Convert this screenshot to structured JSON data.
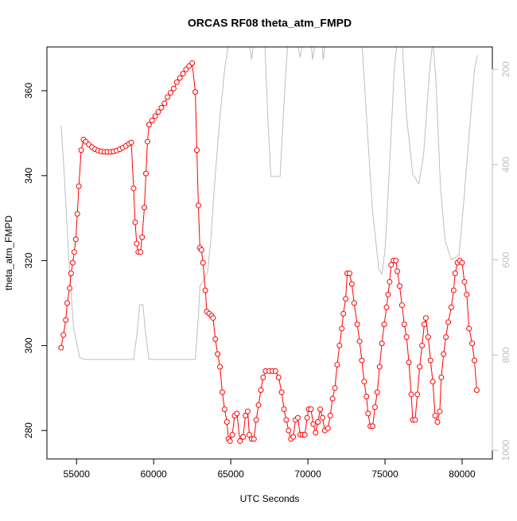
{
  "chart_data": {
    "type": "line",
    "title": "ORCAS RF08 theta_atm_FMPD",
    "x_label": "UTC Seconds",
    "y_label": "theta_atm_FMPD",
    "xlim": [
      53080,
      81960
    ],
    "xticks": [
      55000,
      60000,
      65000,
      70000,
      75000,
      80000
    ],
    "ylim": [
      273.3,
      370.3
    ],
    "yticks": [
      280,
      300,
      320,
      340,
      360
    ],
    "y2lim": [
      1018,
      153
    ],
    "y2ticks": [
      200,
      400,
      600,
      800,
      1000
    ],
    "series": [
      {
        "color": "#ff0000",
        "marker": "circle",
        "x": [
          54000,
          54150,
          54300,
          54400,
          54550,
          54650,
          54750,
          54850,
          54950,
          55050,
          55150,
          55300,
          55450,
          55600,
          55800,
          56000,
          56200,
          56400,
          56600,
          56800,
          57000,
          57200,
          57400,
          57600,
          57800,
          58000,
          58200,
          58400,
          58550,
          58700,
          58800,
          58900,
          59000,
          59150,
          59250,
          59400,
          59500,
          59600,
          59700,
          59900,
          60100,
          60300,
          60500,
          60700,
          60900,
          61100,
          61300,
          61500,
          61700,
          61900,
          62100,
          62300,
          62500,
          62700,
          62800,
          62900,
          63000,
          63100,
          63200,
          63350,
          63450,
          63600,
          63750,
          63850,
          64000,
          64150,
          64300,
          64450,
          64600,
          64750,
          64850,
          64950,
          65100,
          65250,
          65400,
          65600,
          65800,
          65950,
          66100,
          66200,
          66350,
          66500,
          66650,
          66800,
          66950,
          67100,
          67250,
          67500,
          67700,
          67900,
          68100,
          68300,
          68450,
          68600,
          68750,
          68900,
          69050,
          69200,
          69350,
          69500,
          69650,
          69800,
          69950,
          70050,
          70200,
          70350,
          70500,
          70650,
          70800,
          70950,
          71100,
          71300,
          71450,
          71600,
          71750,
          71900,
          72050,
          72200,
          72300,
          72450,
          72550,
          72700,
          72850,
          73000,
          73200,
          73350,
          73500,
          73650,
          73800,
          73900,
          74050,
          74200,
          74350,
          74500,
          74650,
          74800,
          74950,
          75100,
          75200,
          75300,
          75400,
          75550,
          75700,
          75800,
          75950,
          76100,
          76250,
          76400,
          76550,
          76700,
          76800,
          76950,
          77100,
          77250,
          77400,
          77550,
          77650,
          77800,
          77950,
          78100,
          78250,
          78400,
          78550,
          78650,
          78800,
          78950,
          79100,
          79300,
          79450,
          79550,
          79700,
          79850,
          80000,
          80150,
          80300,
          80450,
          80650,
          80800,
          80950
        ],
        "values": [
          299.5,
          302.5,
          306,
          310,
          313.5,
          317,
          319.5,
          322,
          325,
          331,
          337.5,
          346,
          348.5,
          348,
          347.3,
          346.7,
          346.2,
          345.9,
          345.7,
          345.6,
          345.6,
          345.6,
          345.7,
          345.9,
          346.2,
          346.6,
          347,
          347.5,
          347.8,
          337,
          329,
          324,
          322,
          322,
          325.5,
          332.5,
          340.5,
          348,
          352,
          353,
          354,
          355,
          356,
          357,
          358.5,
          359.5,
          360.5,
          362,
          363,
          364,
          365,
          365.8,
          366.5,
          359.7,
          346,
          333,
          323,
          322.5,
          319.5,
          313,
          308,
          307.5,
          307,
          306.5,
          301.5,
          298,
          295,
          289,
          285,
          282,
          278,
          277.5,
          279,
          283.5,
          284,
          277.5,
          278.5,
          283.5,
          284.5,
          279,
          278,
          278,
          282.5,
          286,
          289.5,
          292.5,
          294,
          294,
          294,
          294,
          292.5,
          289,
          285,
          282.5,
          280,
          278,
          278.5,
          282.5,
          283,
          279,
          279,
          279,
          283,
          285,
          285,
          281.5,
          279.5,
          282,
          285,
          283,
          280,
          280.5,
          283.5,
          287.5,
          290,
          295.5,
          300,
          304,
          307.5,
          311,
          317,
          317,
          314.5,
          310,
          305,
          301,
          296.5,
          291.5,
          288,
          284,
          281,
          281,
          285.5,
          289,
          295,
          300.5,
          305,
          309,
          312,
          315,
          319,
          320,
          320,
          317.5,
          314,
          309.5,
          305,
          302,
          296,
          288.5,
          282.5,
          282.5,
          288.5,
          295,
          300,
          305,
          306.5,
          302,
          296.5,
          291.5,
          283.5,
          282,
          284.5,
          292.5,
          298,
          302,
          305.5,
          309,
          313,
          317,
          319.5,
          320,
          319.5,
          315,
          312,
          304,
          300.5,
          296.5,
          289.5
        ]
      },
      {
        "color": "#bebebe",
        "axis": "y2",
        "x": [
          54000,
          54200,
          54500,
          54800,
          55200,
          55500,
          58700,
          58900,
          59100,
          59300,
          59500,
          59700,
          62700,
          62900,
          63000,
          63200,
          63500,
          63700,
          64000,
          64300,
          64600,
          64900,
          66200,
          66350,
          66500,
          67200,
          67400,
          67600,
          68200,
          68400,
          68700,
          69300,
          69500,
          69700,
          70200,
          70300,
          70500,
          70900,
          71000,
          71150,
          73500,
          73800,
          74200,
          74600,
          74800,
          75000,
          75300,
          75600,
          75800,
          76100,
          76400,
          76800,
          77200,
          77500,
          77900,
          78100,
          78300,
          78600,
          78900,
          79300,
          79800,
          80100,
          80500,
          80800,
          81000
        ],
        "values": [
          318,
          420,
          600,
          740,
          805,
          809,
          809,
          760,
          694,
          694,
          760,
          809,
          809,
          720,
          655,
          646,
          625,
          560,
          420,
          300,
          200,
          140,
          140,
          180,
          140,
          140,
          300,
          425,
          425,
          300,
          140,
          140,
          175,
          140,
          140,
          180,
          140,
          140,
          180,
          140,
          140,
          300,
          500,
          620,
          630,
          580,
          400,
          200,
          140,
          140,
          300,
          420,
          440,
          380,
          200,
          140,
          220,
          450,
          560,
          600,
          590,
          480,
          320,
          200,
          170
        ]
      }
    ]
  }
}
